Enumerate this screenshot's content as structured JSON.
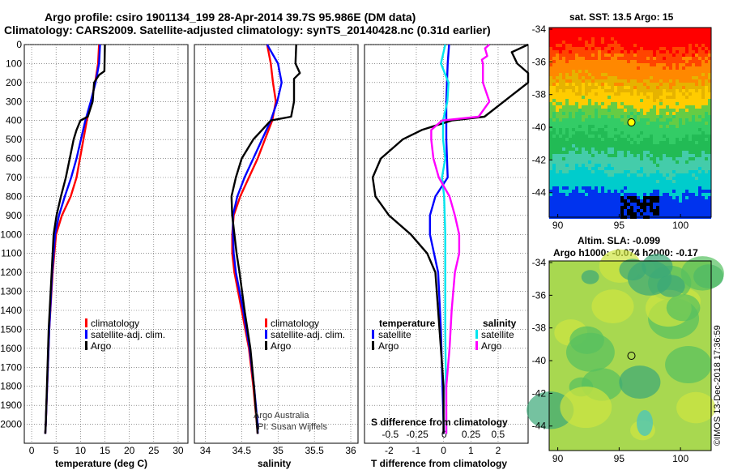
{
  "header": {
    "line1": "Argo profile: csiro 1901134_199 28-Apr-2014 39.7S 95.986E (DM data)",
    "line2": "Climatology: CARS2009. Satellite-adjusted climatology: synTS_20140428.nc (0.31d earlier)"
  },
  "chart_data": [
    {
      "type": "line",
      "xlabel": "temperature (deg C)",
      "ylabel": "",
      "xlim": [
        -1.5,
        32
      ],
      "ylim": [
        2100,
        0
      ],
      "xticks": [
        "0",
        "5",
        "10",
        "15",
        "20",
        "25",
        "30"
      ],
      "yticks": [
        "0",
        "100",
        "200",
        "300",
        "400",
        "500",
        "600",
        "700",
        "800",
        "900",
        "1000",
        "1100",
        "1200",
        "1300",
        "1400",
        "1500",
        "1600",
        "1700",
        "1800",
        "1900",
        "2000"
      ],
      "legend": [
        "climatology",
        "satellite-adj. clim.",
        "Argo"
      ],
      "series": [
        {
          "name": "climatology",
          "color": "#ff0000",
          "depth": [
            0,
            100,
            200,
            300,
            400,
            500,
            600,
            700,
            800,
            900,
            1000,
            1200,
            1500,
            2000,
            2050
          ],
          "values": [
            13.8,
            13.6,
            13.0,
            12.2,
            11.3,
            10.6,
            9.9,
            9.2,
            8.0,
            6.2,
            5.0,
            4.3,
            3.6,
            2.9,
            2.8
          ]
        },
        {
          "name": "satellite-adj. clim.",
          "color": "#0000ff",
          "depth": [
            0,
            100,
            200,
            300,
            400,
            500,
            600,
            700,
            800,
            900,
            1000,
            1200,
            1500,
            2000,
            2050
          ],
          "values": [
            14.0,
            13.8,
            13.1,
            12.1,
            11.0,
            10.1,
            9.2,
            8.1,
            6.8,
            5.6,
            4.8,
            4.2,
            3.6,
            2.9,
            2.8
          ]
        },
        {
          "name": "Argo",
          "color": "#000000",
          "depth": [
            0,
            140,
            160,
            200,
            300,
            380,
            400,
            450,
            500,
            600,
            700,
            800,
            900,
            1000,
            1200,
            1500,
            2000,
            2050
          ],
          "values": [
            15.0,
            14.9,
            13.8,
            12.8,
            12.5,
            11.5,
            10.0,
            9.2,
            8.6,
            7.8,
            7.0,
            6.0,
            5.1,
            4.5,
            4.1,
            3.5,
            2.9,
            2.8
          ]
        }
      ]
    },
    {
      "type": "line",
      "xlabel": "salinity",
      "xlim": [
        33.85,
        36.1
      ],
      "ylim": [
        2100,
        0
      ],
      "xticks": [
        "34",
        "34.5",
        "35",
        "35.5",
        "36"
      ],
      "legend": [
        "climatology",
        "satellite-adj. clim.",
        "Argo"
      ],
      "annotations": [
        "Argo Australia",
        "PI: Susan Wijffels"
      ],
      "series": [
        {
          "name": "climatology",
          "color": "#ff0000",
          "depth": [
            0,
            100,
            200,
            300,
            400,
            500,
            600,
            700,
            800,
            900,
            1000,
            1100,
            1200,
            1400,
            1600,
            1800,
            2000,
            2050
          ],
          "values": [
            34.85,
            34.9,
            34.93,
            34.97,
            34.92,
            34.82,
            34.72,
            34.6,
            34.48,
            34.39,
            34.37,
            34.37,
            34.4,
            34.5,
            34.6,
            34.66,
            34.71,
            34.72
          ]
        },
        {
          "name": "satellite-adj. clim.",
          "color": "#0000ff",
          "depth": [
            0,
            100,
            200,
            300,
            400,
            500,
            600,
            700,
            800,
            900,
            1000,
            1100,
            1200,
            1400,
            1600,
            1800,
            2000,
            2050
          ],
          "values": [
            34.85,
            35.0,
            35.05,
            34.99,
            34.9,
            34.78,
            34.66,
            34.54,
            34.44,
            34.38,
            34.38,
            34.39,
            34.42,
            34.52,
            34.61,
            34.67,
            34.72,
            34.72
          ]
        },
        {
          "name": "Argo",
          "color": "#000000",
          "depth": [
            0,
            100,
            150,
            180,
            300,
            380,
            400,
            450,
            500,
            600,
            700,
            800,
            900,
            1000,
            1100,
            1200,
            1400,
            1600,
            1800,
            2000,
            2050
          ],
          "values": [
            35.25,
            35.24,
            35.3,
            35.22,
            35.22,
            35.18,
            34.9,
            34.78,
            34.66,
            34.5,
            34.42,
            34.36,
            34.37,
            34.4,
            34.43,
            34.47,
            34.54,
            34.62,
            34.67,
            34.71,
            34.72
          ]
        }
      ]
    },
    {
      "type": "line",
      "xlabel": "T difference from climatology",
      "title": "S difference from climatology",
      "xlim": [
        -2.9,
        3.1
      ],
      "top_xlim": [
        -0.74,
        0.78
      ],
      "ylim": [
        2100,
        0
      ],
      "xticks": [
        "-2",
        "-1",
        "0",
        "1",
        "2"
      ],
      "top_xticks": [
        "-0.5",
        "-0.25",
        "0",
        "0.25",
        "0.5"
      ],
      "legend_left_title": "temperature",
      "legend_right_title": "salinity",
      "legend": [
        "satellite",
        "Argo",
        "satellite",
        "Argo"
      ],
      "series": [
        {
          "name": "T satellite",
          "color": "#0000ff",
          "axis": "T",
          "depth": [
            0,
            100,
            300,
            500,
            700,
            800,
            900,
            1000,
            1200,
            1500,
            2000,
            2050
          ],
          "values": [
            0.2,
            0.15,
            0.1,
            0.1,
            0.15,
            -0.3,
            -0.5,
            -0.5,
            -0.2,
            -0.1,
            0.0,
            0.0
          ]
        },
        {
          "name": "T Argo",
          "color": "#000000",
          "axis": "T",
          "depth": [
            0,
            40,
            100,
            150,
            200,
            380,
            400,
            450,
            500,
            600,
            700,
            800,
            900,
            1000,
            1100,
            1200,
            1400,
            1600,
            1800,
            2000,
            2050
          ],
          "values": [
            3.1,
            2.5,
            2.7,
            3.1,
            3.2,
            1.5,
            0.3,
            -0.8,
            -1.5,
            -2.3,
            -2.6,
            -2.5,
            -2.0,
            -1.2,
            -0.6,
            -0.3,
            -0.2,
            -0.1,
            0.0,
            0.0,
            0.0
          ]
        },
        {
          "name": "S satellite",
          "color": "#00e5ee",
          "axis": "S",
          "depth": [
            0,
            100,
            200,
            300,
            400,
            500,
            600,
            700,
            800,
            1000,
            1500,
            2000,
            2050
          ],
          "values": [
            0.01,
            -0.03,
            0.04,
            0.03,
            -0.01,
            -0.01,
            0.01,
            -0.02,
            0.0,
            0.01,
            0.01,
            0.02,
            0.02
          ]
        },
        {
          "name": "S Argo",
          "color": "#ff00ff",
          "axis": "S",
          "depth": [
            0,
            20,
            60,
            80,
            100,
            200,
            300,
            380,
            400,
            450,
            500,
            600,
            700,
            800,
            900,
            1000,
            1100,
            1200,
            1400,
            1600,
            1800,
            2000,
            2050
          ],
          "values": [
            0.42,
            0.38,
            0.4,
            0.35,
            0.36,
            0.36,
            0.42,
            0.32,
            -0.02,
            -0.12,
            -0.12,
            -0.1,
            -0.05,
            0.05,
            0.1,
            0.14,
            0.14,
            0.1,
            0.07,
            0.05,
            0.02,
            0.02,
            0.02
          ]
        }
      ]
    },
    {
      "type": "heatmap",
      "title": "sat. SST: 13.5 Argo: 15",
      "xticks": [
        "90",
        "95",
        "100"
      ],
      "yticks": [
        "-34",
        "-36",
        "-38",
        "-40",
        "-42",
        "-44"
      ],
      "xlim": [
        89.3,
        102.5
      ],
      "ylim": [
        -45.5,
        -33.9
      ],
      "marker": {
        "lon": 96,
        "lat": -39.7,
        "color": "#ffff00"
      }
    },
    {
      "type": "heatmap",
      "title1": "Altim. SLA: -0.099",
      "title2": "Argo h1000: -0.074 h2000: -0.17",
      "xticks": [
        "90",
        "95",
        "100"
      ],
      "yticks": [
        "-34",
        "-36",
        "-38",
        "-40",
        "-42",
        "-44"
      ],
      "xlim": [
        89.3,
        102.5
      ],
      "ylim": [
        -45.5,
        -33.9
      ],
      "marker": {
        "lon": 96,
        "lat": -39.7
      }
    }
  ],
  "credit": "©IMOS 13-Dec-2018 17:36:59"
}
